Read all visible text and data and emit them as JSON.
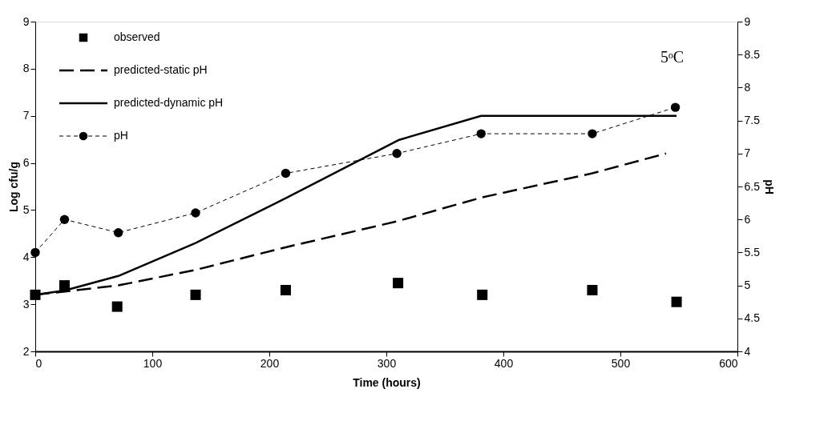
{
  "chart_data": {
    "type": "line",
    "xlabel": "Time (hours)",
    "ylabel": "Log cfu/g",
    "y2label": "pH",
    "xlim": [
      0,
      600
    ],
    "xticks": [
      0,
      100,
      200,
      300,
      400,
      500,
      600
    ],
    "ylim": [
      2,
      9
    ],
    "yticks": [
      2,
      3,
      4,
      5,
      6,
      7,
      8,
      9
    ],
    "y2lim": [
      4,
      9
    ],
    "y2ticks": [
      4,
      4.5,
      5,
      5.5,
      6,
      6.5,
      7,
      7.5,
      8,
      8.5,
      9
    ],
    "grid": false,
    "legend": "top left",
    "annotations": [
      "5ᵒC"
    ],
    "series": [
      {
        "name": "observed",
        "color": "#000000",
        "type": "scatter",
        "marker": "square",
        "x": [
          0,
          25,
          70,
          137,
          214,
          310,
          382,
          476,
          548
        ],
        "values": [
          3.2,
          3.4,
          2.95,
          3.2,
          3.3,
          3.45,
          3.2,
          3.3,
          3.05
        ]
      },
      {
        "name": "predicted-static pH",
        "color": "#000000",
        "marker": "none",
        "line_style": "dashed",
        "x": [
          0,
          71,
          137,
          214,
          309,
          382,
          476,
          539
        ],
        "values": [
          3.2,
          3.4,
          3.73,
          4.21,
          4.76,
          5.27,
          5.78,
          6.2
        ]
      },
      {
        "name": "predicted-dynamic pH",
        "color": "#000000",
        "marker": "none",
        "line_style": "solid",
        "x": [
          0,
          25,
          71,
          137,
          214,
          311,
          381,
          548
        ],
        "values": [
          3.2,
          3.29,
          3.6,
          4.3,
          5.25,
          6.49,
          7.0,
          7.0
        ]
      },
      {
        "name": "pH",
        "color": "#000000",
        "marker": "circle",
        "line_style": "dotted",
        "axis": "y2",
        "x": [
          0,
          25,
          71,
          137,
          214,
          309,
          381,
          476,
          547
        ],
        "values": [
          5.5,
          6.0,
          5.8,
          6.1,
          6.7,
          7.0,
          7.3,
          7.3,
          7.7
        ]
      }
    ]
  }
}
